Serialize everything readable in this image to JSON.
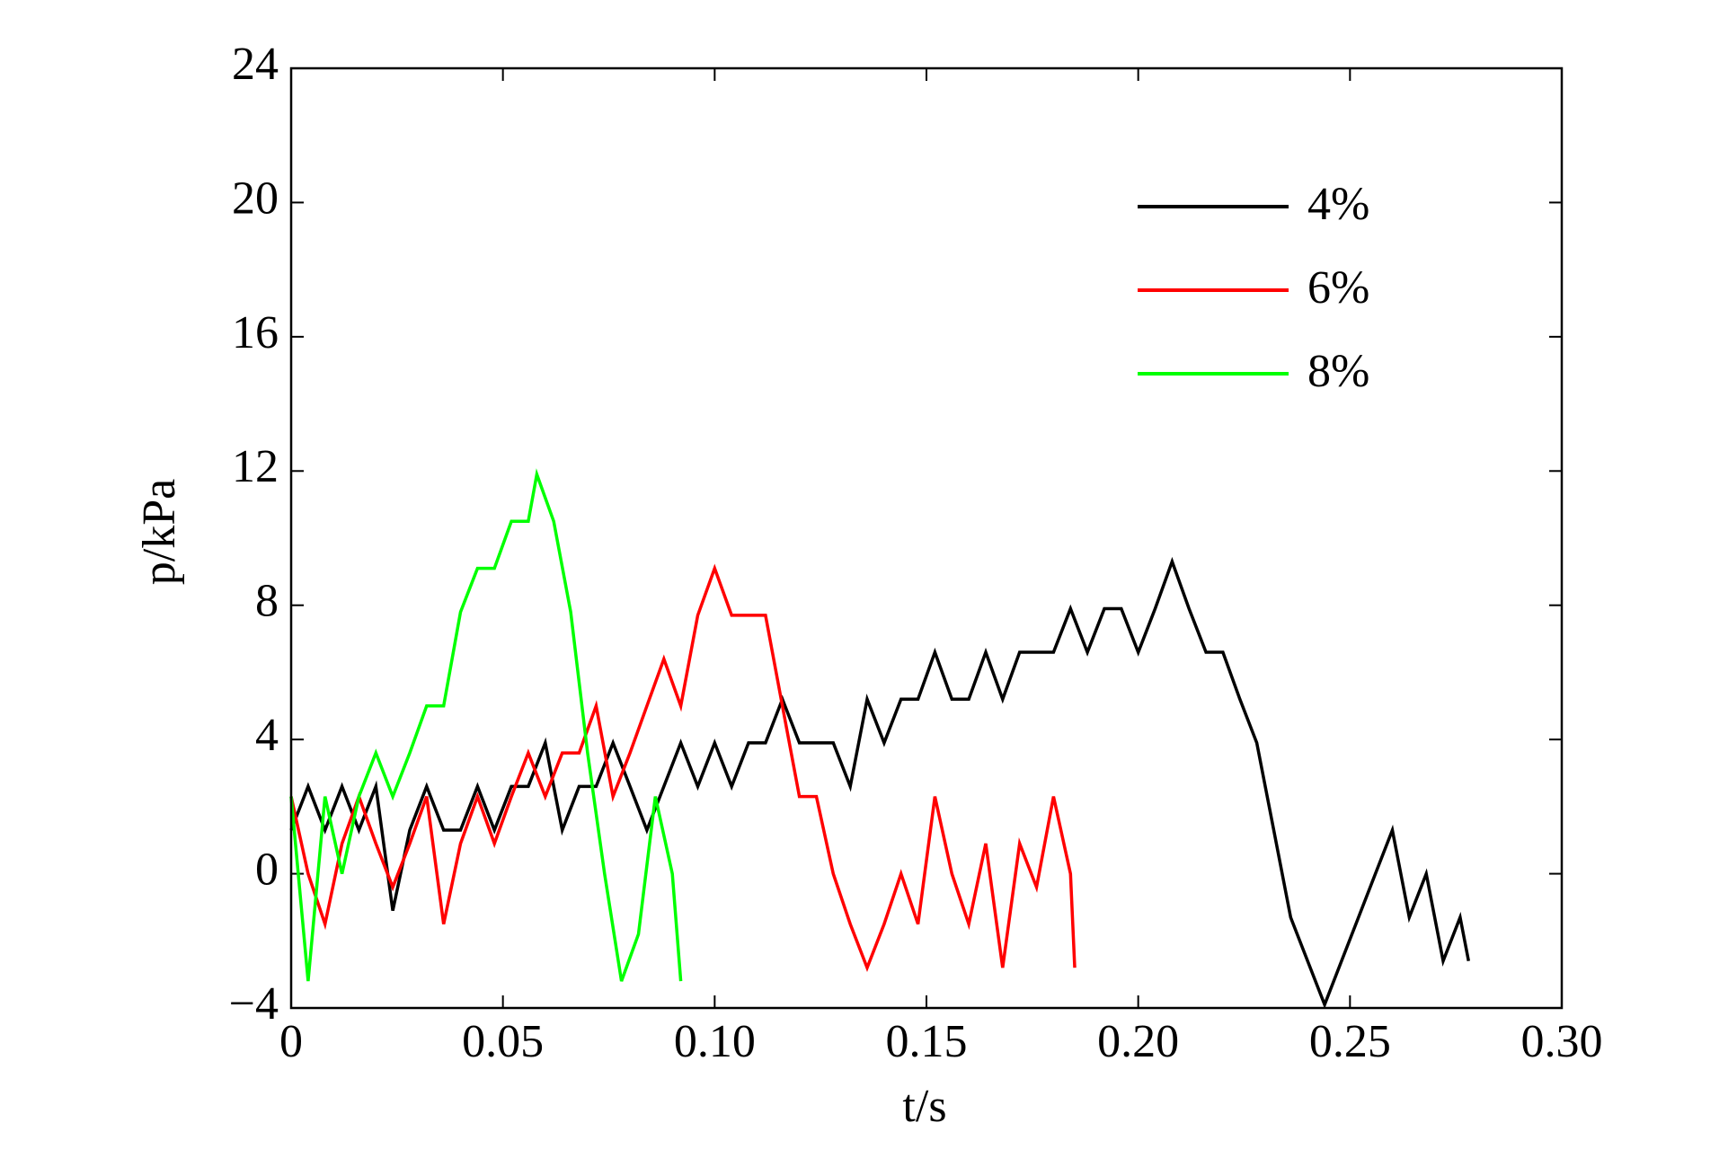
{
  "chart_data": {
    "type": "line",
    "x_label": "t/s",
    "y_label": "p/kPa",
    "xlim": [
      0,
      0.3
    ],
    "ylim": [
      -4,
      24
    ],
    "xticks": [
      0,
      0.05,
      {
        "value": 0.1,
        "label": "0.10"
      },
      0.15,
      {
        "value": 0.2,
        "label": "0.20"
      },
      0.25,
      {
        "value": 0.3,
        "label": "0.30"
      }
    ],
    "yticks": [
      {
        "value": -4,
        "label": "−4"
      },
      0,
      4,
      8,
      12,
      16,
      20,
      24
    ],
    "legend": "upper-right",
    "series": [
      {
        "name": "4%",
        "color": "#000000",
        "x": [
          0,
          0.004,
          0.008,
          0.012,
          0.016,
          0.02,
          0.024,
          0.028,
          0.032,
          0.036,
          0.04,
          0.044,
          0.048,
          0.052,
          0.056,
          0.06,
          0.064,
          0.068,
          0.072,
          0.076,
          0.08,
          0.084,
          0.088,
          0.092,
          0.096,
          0.1,
          0.104,
          0.108,
          0.112,
          0.116,
          0.12,
          0.124,
          0.128,
          0.132,
          0.136,
          0.14,
          0.144,
          0.148,
          0.152,
          0.156,
          0.16,
          0.164,
          0.168,
          0.172,
          0.176,
          0.18,
          0.184,
          0.188,
          0.192,
          0.196,
          0.2,
          0.204,
          0.208,
          0.212,
          0.216,
          0.22,
          0.224,
          0.228,
          0.232,
          0.236,
          0.24,
          0.244,
          0.248,
          0.252,
          0.256,
          0.26,
          0.264,
          0.268,
          0.272,
          0.276,
          0.278
        ],
        "values": [
          1.3,
          2.6,
          1.3,
          2.6,
          1.3,
          2.6,
          -1.1,
          1.3,
          2.6,
          1.3,
          1.3,
          2.6,
          1.3,
          2.6,
          2.6,
          3.9,
          1.3,
          2.6,
          2.6,
          3.9,
          2.6,
          1.3,
          2.6,
          3.9,
          2.6,
          3.9,
          2.6,
          3.9,
          3.9,
          5.2,
          3.9,
          3.9,
          3.9,
          2.6,
          5.2,
          3.9,
          5.2,
          5.2,
          6.6,
          5.2,
          5.2,
          6.6,
          5.2,
          6.6,
          6.6,
          6.6,
          7.9,
          6.6,
          7.9,
          7.9,
          6.6,
          7.9,
          9.3,
          7.9,
          6.6,
          6.6,
          5.2,
          3.9,
          1.3,
          -1.3,
          -2.6,
          -3.9,
          -2.6,
          -1.3,
          0,
          1.3,
          -1.3,
          0,
          -2.6,
          -1.3,
          -2.6
        ]
      },
      {
        "name": "6%",
        "color": "#ff0000",
        "x": [
          0,
          0.004,
          0.008,
          0.012,
          0.016,
          0.02,
          0.024,
          0.028,
          0.032,
          0.036,
          0.04,
          0.044,
          0.048,
          0.052,
          0.056,
          0.06,
          0.064,
          0.068,
          0.072,
          0.076,
          0.08,
          0.084,
          0.088,
          0.092,
          0.096,
          0.1,
          0.104,
          0.108,
          0.112,
          0.116,
          0.12,
          0.124,
          0.128,
          0.132,
          0.136,
          0.14,
          0.144,
          0.148,
          0.152,
          0.156,
          0.16,
          0.164,
          0.168,
          0.172,
          0.176,
          0.18,
          0.184,
          0.185
        ],
        "values": [
          2.3,
          0,
          -1.5,
          0.9,
          2.3,
          0.9,
          -0.4,
          0.9,
          2.3,
          -1.5,
          0.9,
          2.3,
          0.9,
          2.3,
          3.6,
          2.3,
          3.6,
          3.6,
          5,
          2.3,
          3.6,
          5,
          6.4,
          5,
          7.7,
          9.1,
          7.7,
          7.7,
          7.7,
          5,
          2.3,
          2.3,
          0,
          -1.5,
          -2.8,
          -1.5,
          0,
          -1.5,
          2.3,
          0,
          -1.5,
          0.9,
          -2.8,
          0.9,
          -0.4,
          2.3,
          0,
          -2.8
        ]
      },
      {
        "name": "8%",
        "color": "#00ff00",
        "x": [
          0,
          0.004,
          0.008,
          0.012,
          0.016,
          0.02,
          0.024,
          0.028,
          0.032,
          0.036,
          0.04,
          0.044,
          0.048,
          0.052,
          0.056,
          0.058,
          0.062,
          0.066,
          0.07,
          0.074,
          0.078,
          0.082,
          0.086,
          0.09,
          0.092
        ],
        "values": [
          2.3,
          -3.2,
          2.3,
          0,
          2.3,
          3.6,
          2.3,
          3.6,
          5,
          5,
          7.8,
          9.1,
          9.1,
          10.5,
          10.5,
          11.9,
          10.5,
          7.8,
          3.6,
          0,
          -3.2,
          -1.8,
          2.3,
          0,
          -3.2
        ]
      }
    ]
  }
}
